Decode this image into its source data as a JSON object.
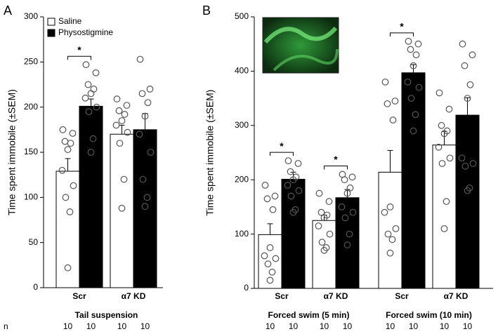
{
  "chart_data": [
    {
      "type": "bar",
      "panel": "A",
      "ylabel": "Time spent immobile (±SEM)",
      "ylim": [
        0,
        300
      ],
      "yticks": [
        0,
        50,
        100,
        150,
        200,
        250,
        300
      ],
      "groups": [
        {
          "label": "Tail suspension",
          "categories": [
            {
              "label": "Scr",
              "annotation": "*"
            },
            {
              "label": "α7 KD"
            }
          ]
        }
      ],
      "n_label": "n",
      "series": [
        {
          "name": "Saline",
          "color": "#ffffff",
          "values": [
            129,
            170
          ],
          "errors": [
            14,
            10
          ],
          "n": [
            10,
            10
          ],
          "points": [
            [
              175,
              171,
              162,
              160,
              153,
              130,
              113,
              100,
              84,
              22
            ],
            [
              209,
              202,
              196,
              192,
              185,
              180,
              172,
              160,
              120,
              88
            ]
          ]
        },
        {
          "name": "Physostigmine",
          "color": "#000000",
          "values": [
            201,
            175
          ],
          "errors": [
            8,
            18
          ],
          "n": [
            10,
            10
          ],
          "points": [
            [
              247,
              238,
              225,
              220,
              215,
              210,
              200,
              195,
              165,
              150
            ],
            [
              253,
              220,
              215,
              205,
              190,
              170,
              150,
              120,
              100,
              90
            ]
          ]
        }
      ]
    },
    {
      "type": "bar",
      "panel": "B",
      "ylabel": "Time spent immobile (±SEM)",
      "ylim": [
        0,
        500
      ],
      "yticks": [
        0,
        100,
        200,
        300,
        400,
        500
      ],
      "groups": [
        {
          "label": "Forced swim (5 min)",
          "categories": [
            {
              "label": "Scr",
              "annotation": "*"
            },
            {
              "label": "α7 KD",
              "annotation": "*"
            }
          ]
        },
        {
          "label": "Forced swim (10 min)",
          "categories": [
            {
              "label": "Scr",
              "annotation": "*"
            },
            {
              "label": "α7 KD"
            }
          ]
        }
      ],
      "series": [
        {
          "color": "#ffffff",
          "values": [
            99,
            125,
            214,
            264
          ],
          "errors": [
            20,
            10,
            40,
            25
          ],
          "n": [
            10,
            10,
            10,
            10
          ],
          "points": [
            [
              190,
              170,
              165,
              145,
              75,
              60,
              55,
              45,
              30,
              15
            ],
            [
              175,
              160,
              140,
              135,
              130,
              115,
              100,
              85,
              75,
              70
            ],
            [
              380,
              345,
              340,
              310,
              150,
              140,
              110,
              100,
              90,
              65
            ],
            [
              360,
              330,
              300,
              290,
              285,
              260,
              240,
              230,
              160,
              110
            ]
          ]
        },
        {
          "color": "#000000",
          "values": [
            201,
            167,
            397,
            319
          ],
          "errors": [
            13,
            15,
            15,
            32
          ],
          "n": [
            10,
            10,
            10,
            10
          ],
          "points": [
            [
              235,
              230,
              215,
              205,
              200,
              190,
              180,
              170,
              145,
              140
            ],
            [
              210,
              205,
              200,
              185,
              175,
              150,
              140,
              130,
              100,
              80
            ],
            [
              455,
              450,
              440,
              430,
              410,
              380,
              370,
              350,
              320,
              290
            ],
            [
              450,
              430,
              410,
              375,
              350,
              240,
              230,
              225,
              185,
              180
            ]
          ]
        }
      ]
    }
  ]
}
